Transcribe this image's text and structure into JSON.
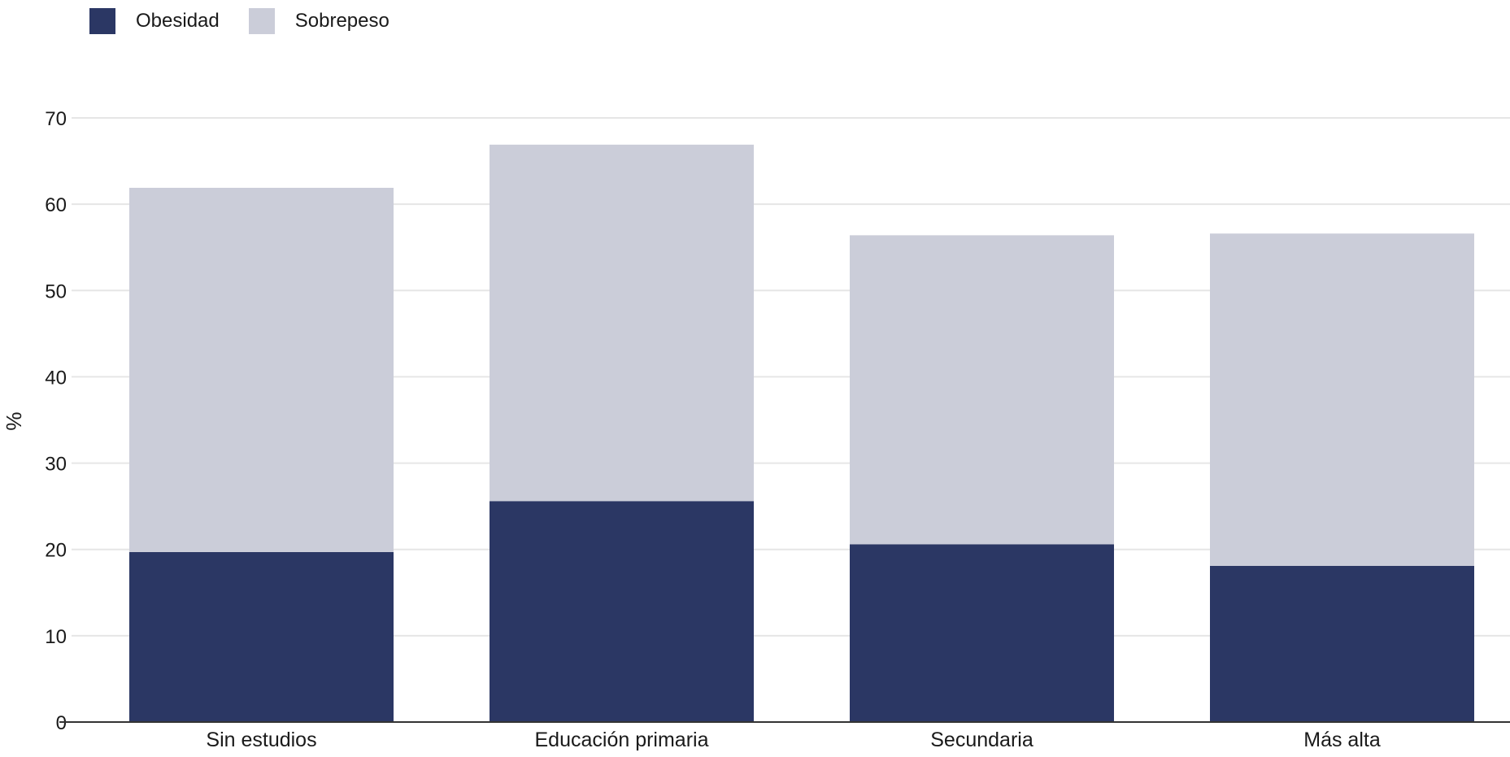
{
  "colors": {
    "obesidad": "#2b3764",
    "sobrepeso": "#cbcdd9",
    "grid": "#e6e6e6",
    "axis": "#333333"
  },
  "legend": {
    "items": [
      {
        "label": "Obesidad",
        "color": "#2b3764"
      },
      {
        "label": "Sobrepeso",
        "color": "#cbcdd9"
      }
    ]
  },
  "chart_data": {
    "type": "bar",
    "stacked": true,
    "categories": [
      "Sin estudios",
      "Educación primaria",
      "Secundaria",
      "Más alta"
    ],
    "series": [
      {
        "name": "Obesidad",
        "values": [
          19.7,
          25.6,
          20.6,
          18.1
        ]
      },
      {
        "name": "Sobrepeso",
        "values": [
          42.2,
          41.3,
          35.8,
          38.5
        ]
      }
    ],
    "ylabel": "%",
    "ylim": [
      0,
      70
    ],
    "yticks": [
      0,
      10,
      20,
      30,
      40,
      50,
      60,
      70
    ],
    "grid": true,
    "legend_position": "top-left"
  }
}
